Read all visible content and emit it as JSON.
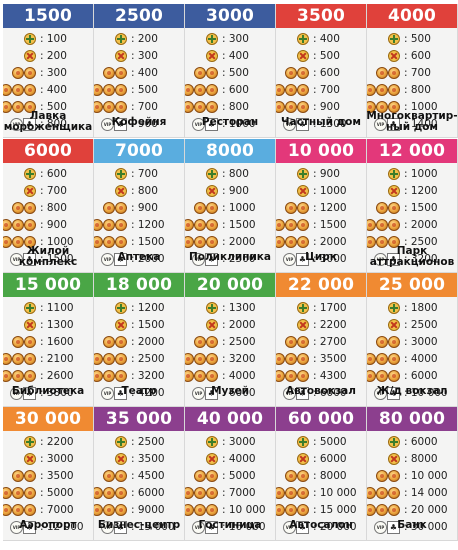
{
  "cards": [
    {
      "price": "1500",
      "name": "Лавка мороженщика",
      "color": "#3d5c9e",
      "rents": [
        ": 100",
        ": 200",
        ": 300",
        ": 400",
        ": 500",
        ": 800"
      ]
    },
    {
      "price": "2500",
      "name": "Кофейня",
      "color": "#3d5c9e",
      "rents": [
        ": 200",
        ": 300",
        ": 400",
        ": 500",
        ": 700",
        ": 900"
      ]
    },
    {
      "price": "3000",
      "name": "Ресторан",
      "color": "#3d5c9e",
      "rents": [
        ": 300",
        ": 400",
        ": 500",
        ": 600",
        ": 800",
        ": 1000"
      ]
    },
    {
      "price": "3500",
      "name": "Частный дом",
      "color": "#e0413b",
      "rents": [
        ": 400",
        ": 500",
        ": 600",
        ": 700",
        ": 900",
        ": 1300"
      ]
    },
    {
      "price": "4000",
      "name": "Многоквартир-ный дом",
      "color": "#e0413b",
      "rents": [
        ": 500",
        ": 600",
        ": 700",
        ": 800",
        ": 1000",
        ": 1400"
      ]
    },
    {
      "price": "6000",
      "name": "Жилой комплекс",
      "color": "#e0413b",
      "rents": [
        ": 600",
        ": 700",
        ": 800",
        ": 900",
        ": 1000",
        ": 1500"
      ]
    },
    {
      "price": "7000",
      "name": "Аптека",
      "color": "#5aaddf",
      "rents": [
        ": 700",
        ": 800",
        ": 900",
        ": 1200",
        ": 1500",
        ": 2000"
      ]
    },
    {
      "price": "8000",
      "name": "Поликлиника",
      "color": "#5aaddf",
      "rents": [
        ": 800",
        ": 900",
        ": 1000",
        ": 1500",
        ": 2000",
        ": 2500"
      ]
    },
    {
      "price": "10 000",
      "name": "Цирк",
      "color": "#e3387a",
      "rents": [
        ": 900",
        ": 1000",
        ": 1200",
        ": 1500",
        ": 2000",
        ": 3000"
      ]
    },
    {
      "price": "12 000",
      "name": "Парк аттракционов",
      "color": "#e3387a",
      "rents": [
        ": 1000",
        ": 1200",
        ": 1500",
        ": 2000",
        ": 2500",
        ": 3200"
      ]
    },
    {
      "price": "15 000",
      "name": "Библиотека",
      "color": "#4aa646",
      "rents": [
        ": 1100",
        ": 1300",
        ": 1600",
        ": 2100",
        ": 2600",
        ": 3800"
      ]
    },
    {
      "price": "18 000",
      "name": "Театр",
      "color": "#4aa646",
      "rents": [
        ": 1200",
        ": 1500",
        ": 2000",
        ": 2500",
        ": 3200",
        ": 4200"
      ]
    },
    {
      "price": "20 000",
      "name": "Музей",
      "color": "#4aa646",
      "rents": [
        ": 1300",
        ": 2000",
        ": 2500",
        ": 3200",
        ": 4000",
        ": 6000"
      ]
    },
    {
      "price": "22 000",
      "name": "Автовокзал",
      "color": "#f08a32",
      "rents": [
        ": 1700",
        ": 2200",
        ": 2700",
        ": 3500",
        ": 4300",
        ": 6000"
      ]
    },
    {
      "price": "25 000",
      "name": "Ж/д вокзал",
      "color": "#f08a32",
      "rents": [
        ": 1800",
        ": 2500",
        ": 3000",
        ": 4000",
        ": 6000",
        ": 10 000"
      ]
    },
    {
      "price": "30 000",
      "name": "Аэропорт",
      "color": "#f08a32",
      "rents": [
        ": 2200",
        ": 3000",
        ": 3500",
        ": 5000",
        ": 7000",
        ": 12 000"
      ]
    },
    {
      "price": "35 000",
      "name": "Бизнес-центр",
      "color": "#8c3f8e",
      "rents": [
        ": 2500",
        ": 3500",
        ": 4500",
        ": 6000",
        ": 9000",
        ": 15 000"
      ]
    },
    {
      "price": "40 000",
      "name": "Гостиница",
      "color": "#8c3f8e",
      "rents": [
        ": 3000",
        ": 4000",
        ": 5000",
        ": 7000",
        ": 10 000",
        ": 16 000"
      ]
    },
    {
      "price": "60 000",
      "name": "Автосалон",
      "color": "#8c3f8e",
      "rents": [
        ": 5000",
        ": 6000",
        ": 8000",
        ": 10 000",
        ": 15 000",
        ": 20 000"
      ]
    },
    {
      "price": "80 000",
      "name": "Банк",
      "color": "#8c3f8e",
      "rents": [
        ": 6000",
        ": 8000",
        ": 10 000",
        ": 14 000",
        ": 20 000",
        ": 30 000"
      ]
    }
  ]
}
